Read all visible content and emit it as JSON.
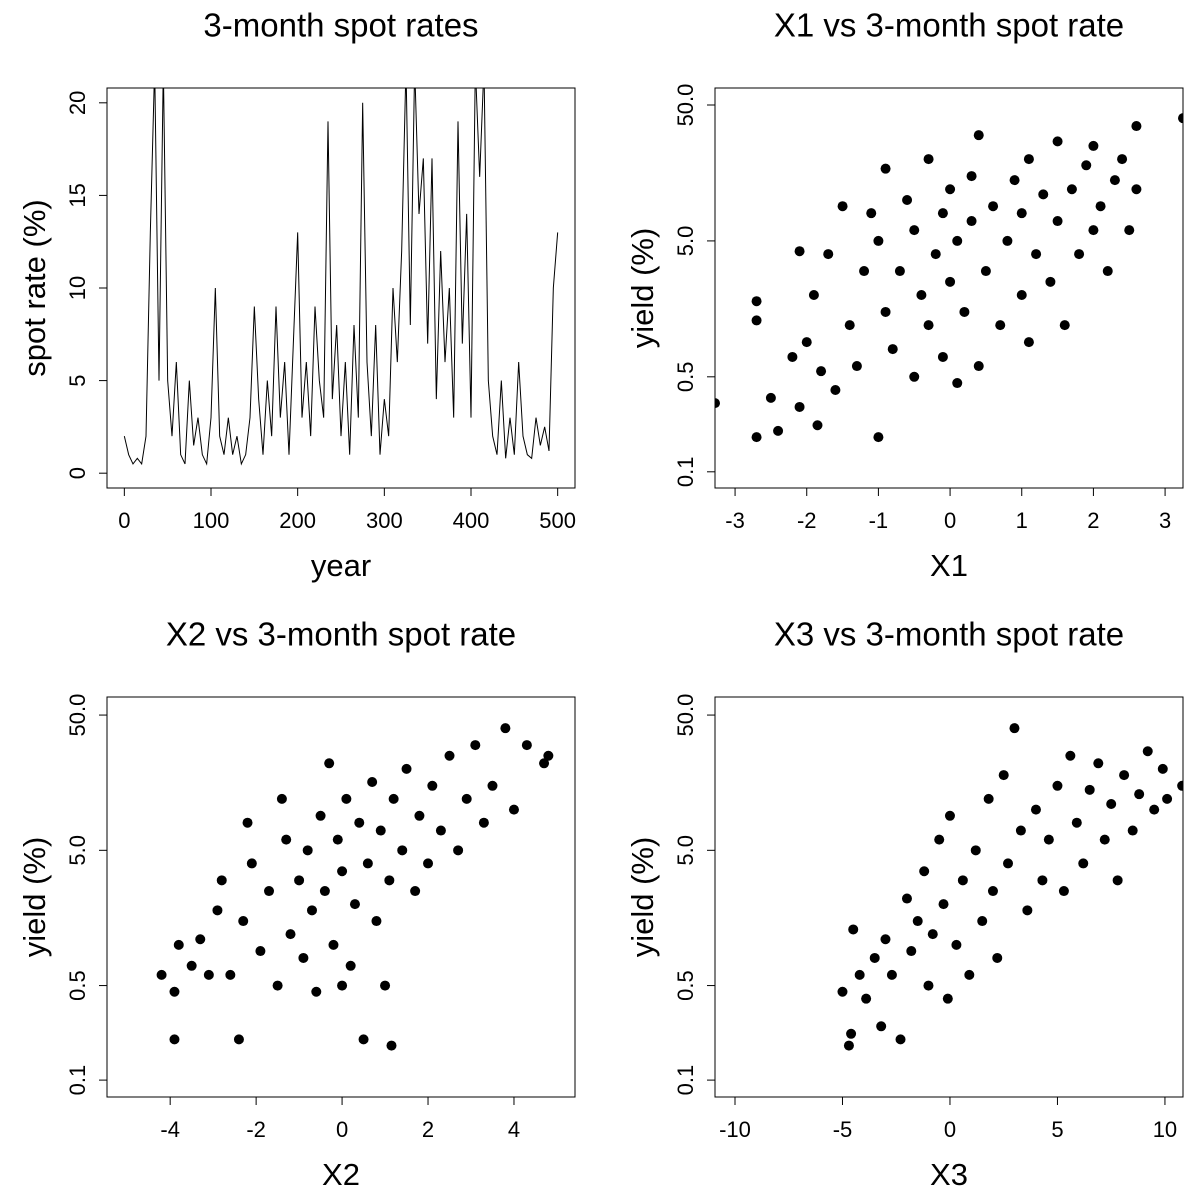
{
  "chart_data": [
    {
      "type": "line",
      "title": "3-month spot rates",
      "xlabel": "year",
      "ylabel": "spot rate (%)",
      "color": "#000000",
      "x": [
        0,
        5,
        10,
        15,
        20,
        25,
        30,
        35,
        40,
        45,
        50,
        55,
        60,
        65,
        70,
        75,
        80,
        85,
        90,
        95,
        100,
        105,
        110,
        115,
        120,
        125,
        130,
        135,
        140,
        145,
        150,
        155,
        160,
        165,
        170,
        175,
        180,
        185,
        190,
        195,
        200,
        205,
        210,
        215,
        220,
        225,
        230,
        235,
        240,
        245,
        250,
        255,
        260,
        265,
        270,
        275,
        280,
        285,
        290,
        295,
        300,
        305,
        310,
        315,
        320,
        325,
        330,
        335,
        340,
        345,
        350,
        355,
        360,
        365,
        370,
        375,
        380,
        385,
        390,
        395,
        400,
        405,
        410,
        415,
        420,
        425,
        430,
        435,
        440,
        445,
        450,
        455,
        460,
        465,
        470,
        475,
        480,
        485,
        490,
        495,
        500
      ],
      "values": [
        2,
        1,
        0.5,
        0.8,
        0.5,
        2,
        13,
        22,
        5,
        22,
        5,
        2,
        6,
        1,
        0.5,
        5,
        1.5,
        3,
        1,
        0.5,
        3,
        10,
        2,
        1,
        3,
        1,
        2,
        0.5,
        1,
        3,
        9,
        4,
        1,
        5,
        2,
        9,
        3,
        6,
        1,
        7,
        13,
        3,
        6,
        2,
        9,
        5,
        3,
        19,
        4,
        8,
        2,
        6,
        1,
        8,
        3,
        20,
        6,
        2,
        8,
        1,
        4,
        2,
        10,
        6,
        12,
        22,
        8,
        22,
        14,
        17,
        7,
        17,
        4,
        12,
        6,
        10,
        3,
        19,
        7,
        14,
        3,
        22,
        16,
        22,
        5,
        2,
        1,
        5,
        0.8,
        3,
        1,
        6,
        2,
        1,
        0.8,
        3,
        1.5,
        2.5,
        1.2,
        10,
        13
      ],
      "xlim": [
        -20,
        520
      ],
      "ylim": [
        -0.8,
        20.8
      ],
      "xticks": [
        0,
        100,
        200,
        300,
        400,
        500
      ],
      "yticks": [
        0,
        5,
        10,
        15,
        20
      ],
      "log_y": false
    },
    {
      "type": "scatter",
      "title": "X1 vs 3-month spot rate",
      "xlabel": "X1",
      "ylabel": "yield (%)",
      "color": "#000000",
      "x": [
        -3.28,
        -2.7,
        -2.7,
        -2.7,
        -2.5,
        -2.4,
        -2.2,
        -2.1,
        -2.1,
        -2,
        -1.9,
        -1.85,
        -1.8,
        -1.7,
        -1.6,
        -1.5,
        -1.4,
        -1.3,
        -1.2,
        -1.1,
        -1,
        -1,
        -0.9,
        -0.9,
        -0.8,
        -0.7,
        -0.6,
        -0.5,
        -0.5,
        -0.4,
        -0.3,
        -0.3,
        -0.2,
        -0.1,
        -0.1,
        0,
        0,
        0.1,
        0.1,
        0.2,
        0.3,
        0.3,
        0.4,
        0.4,
        0.5,
        0.6,
        0.7,
        0.8,
        0.9,
        1,
        1,
        1.1,
        1.1,
        1.2,
        1.3,
        1.4,
        1.5,
        1.5,
        1.6,
        1.7,
        1.8,
        1.9,
        2,
        2,
        2.1,
        2.2,
        2.3,
        2.4,
        2.5,
        2.6,
        2.6,
        3.25
      ],
      "values": [
        0.32,
        0.18,
        1.8,
        1.3,
        0.35,
        0.2,
        0.7,
        0.3,
        4.2,
        0.9,
        2,
        0.22,
        0.55,
        4,
        0.4,
        9,
        1.2,
        0.6,
        3,
        8,
        0.18,
        5,
        1.5,
        17,
        0.8,
        3,
        10,
        0.5,
        6,
        2,
        1.2,
        20,
        4,
        0.7,
        8,
        2.5,
        12,
        0.45,
        5,
        1.5,
        7,
        15,
        0.6,
        30,
        3,
        9,
        1.2,
        5,
        14,
        2,
        8,
        0.9,
        20,
        4,
        11,
        2.5,
        7,
        27,
        1.2,
        12,
        4,
        18,
        6,
        25,
        9,
        3,
        14,
        20,
        6,
        35,
        12,
        40
      ],
      "xlim": [
        -3.28,
        3.25
      ],
      "ylim": [
        0.076,
        66.7
      ],
      "xticks": [
        -3,
        -2,
        -1,
        0,
        1,
        2,
        3
      ],
      "yticks": [
        0.1,
        0.5,
        {
          "value": 5,
          "label": "5.0"
        },
        {
          "value": 50,
          "label": "50.0"
        }
      ],
      "log_y": true
    },
    {
      "type": "scatter",
      "title": "X2 vs 3-month spot rate",
      "xlabel": "X2",
      "ylabel": "yield (%)",
      "color": "#000000",
      "x": [
        -4.2,
        -3.9,
        -3.9,
        -3.8,
        -3.5,
        -3.3,
        -3.1,
        -2.9,
        -2.8,
        -2.6,
        -2.4,
        -2.3,
        -2.2,
        -2.1,
        -1.9,
        -1.7,
        -1.5,
        -1.4,
        -1.3,
        -1.2,
        -1,
        -0.9,
        -0.8,
        -0.7,
        -0.6,
        -0.5,
        -0.4,
        -0.3,
        -0.2,
        -0.1,
        0,
        0,
        0.1,
        0.2,
        0.3,
        0.4,
        0.5,
        0.6,
        0.7,
        0.8,
        0.9,
        1,
        1.1,
        1.15,
        1.2,
        1.4,
        1.5,
        1.7,
        1.8,
        2,
        2.1,
        2.3,
        2.5,
        2.7,
        2.9,
        3.1,
        3.3,
        3.5,
        3.8,
        4,
        4.3,
        4.7,
        4.8
      ],
      "values": [
        0.6,
        0.45,
        0.2,
        1,
        0.7,
        1.1,
        0.6,
        1.8,
        3,
        0.6,
        0.2,
        1.5,
        8,
        4,
        0.9,
        2.5,
        0.5,
        12,
        6,
        1.2,
        3,
        0.8,
        5,
        1.8,
        0.45,
        9,
        2.5,
        22,
        1,
        6,
        0.5,
        3.5,
        12,
        0.7,
        2,
        8,
        0.2,
        4,
        16,
        1.5,
        7,
        0.5,
        3,
        0.18,
        12,
        5,
        20,
        2.5,
        9,
        4,
        15,
        7,
        25,
        5,
        12,
        30,
        8,
        15,
        40,
        10,
        30,
        22,
        25
      ],
      "xlim": [
        -5.47,
        5.42
      ],
      "ylim": [
        0.075,
        68
      ],
      "xticks": [
        -4,
        -2,
        0,
        2,
        4
      ],
      "yticks": [
        0.1,
        0.5,
        {
          "value": 5,
          "label": "5.0"
        },
        {
          "value": 50,
          "label": "50.0"
        }
      ],
      "log_y": true
    },
    {
      "type": "scatter",
      "title": "X3 vs 3-month spot rate",
      "xlabel": "X3",
      "ylabel": "yield (%)",
      "color": "#000000",
      "x": [
        -5,
        -4.7,
        -4.6,
        -4.5,
        -4.2,
        -3.9,
        -3.5,
        -3.2,
        -3,
        -2.7,
        -2.3,
        -2,
        -1.8,
        -1.5,
        -1.2,
        -1,
        -0.8,
        -0.5,
        -0.3,
        -0.1,
        0,
        0.3,
        0.6,
        0.9,
        1.2,
        1.5,
        1.8,
        2,
        2.2,
        2.5,
        2.7,
        3,
        3.3,
        3.6,
        4,
        4.3,
        4.6,
        5,
        5.3,
        5.6,
        5.9,
        6.2,
        6.5,
        6.9,
        7.2,
        7.5,
        7.8,
        8.1,
        8.5,
        8.8,
        9.2,
        9.5,
        9.9,
        10.1,
        10.8
      ],
      "values": [
        0.45,
        0.18,
        0.22,
        1.3,
        0.6,
        0.4,
        0.8,
        0.25,
        1.1,
        0.6,
        0.2,
        2.2,
        0.9,
        1.5,
        3.5,
        0.5,
        1.2,
        6,
        2,
        0.4,
        9,
        1,
        3,
        0.6,
        5,
        1.5,
        12,
        2.5,
        0.8,
        18,
        4,
        40,
        7,
        1.8,
        10,
        3,
        6,
        15,
        2.5,
        25,
        8,
        4,
        14,
        22,
        6,
        11,
        3,
        18,
        7,
        13,
        27,
        10,
        20,
        12,
        15
      ],
      "xlim": [
        -10.93,
        10.84
      ],
      "ylim": [
        0.075,
        68
      ],
      "xticks": [
        -10,
        -5,
        0,
        5,
        10
      ],
      "yticks": [
        0.1,
        0.5,
        {
          "value": 5,
          "label": "5.0"
        },
        {
          "value": 50,
          "label": "50.0"
        }
      ],
      "log_y": true
    }
  ]
}
